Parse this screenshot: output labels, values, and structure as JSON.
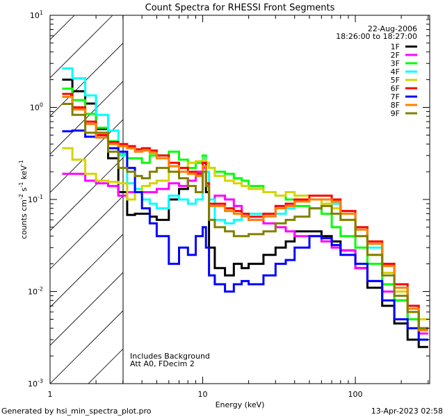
{
  "chart_data": {
    "type": "line",
    "title": "Count Spectra for RHESSI Front Segments",
    "xlabel": "Energy (keV)",
    "ylabel": "counts cm-2 s-1 keV-1",
    "ylabel_parts": {
      "base": "counts cm",
      "e1": "-2",
      "s": " s",
      "e2": "-1",
      "k": " keV",
      "e3": "-1"
    },
    "xscale": "log",
    "yscale": "log",
    "xlim": [
      1,
      307
    ],
    "ylim": [
      0.001,
      10
    ],
    "x_ticks": [
      {
        "value": 1,
        "label": "1"
      },
      {
        "value": 10,
        "label": "10"
      },
      {
        "value": 100,
        "label": "100"
      }
    ],
    "y_ticks": [
      {
        "value": 10,
        "base": "10",
        "exp": "1"
      },
      {
        "value": 1,
        "base": "10",
        "exp": "0"
      },
      {
        "value": 0.1,
        "base": "10",
        "exp": "-1"
      },
      {
        "value": 0.01,
        "base": "10",
        "exp": "-2"
      },
      {
        "value": 0.001,
        "base": "10",
        "exp": "-3"
      }
    ],
    "shaded_region": {
      "from": 1,
      "to": 3,
      "style": "hatched"
    },
    "legend_placement": "top-right",
    "legend_header": [
      "22-Aug-2006",
      "18:26:00 to 18:27:00"
    ],
    "annotations": [
      "Includes Background",
      "Att A0, FDecim 2"
    ],
    "energy_edges": [
      1.2,
      1.4,
      1.7,
      2.0,
      2.4,
      2.8,
      3.2,
      3.6,
      4,
      4.5,
      5,
      6,
      7,
      8,
      9,
      10,
      10.5,
      11,
      12,
      14,
      16,
      18,
      20,
      25,
      30,
      35,
      40,
      50,
      60,
      70,
      80,
      100,
      120,
      150,
      180,
      220,
      260,
      300
    ],
    "series": [
      {
        "name": "1F",
        "color": "#000000",
        "values": [
          2.0,
          1.5,
          1.1,
          0.58,
          0.28,
          0.12,
          0.068,
          0.07,
          0.07,
          0.065,
          0.06,
          0.1,
          0.13,
          0.16,
          0.2,
          0.25,
          0.12,
          0.03,
          0.018,
          0.015,
          0.02,
          0.018,
          0.02,
          0.025,
          0.03,
          0.035,
          0.045,
          0.045,
          0.04,
          0.035,
          0.028,
          0.018,
          0.011,
          0.007,
          0.0045,
          0.003,
          0.0025
        ]
      },
      {
        "name": "2F",
        "color": "#ff00ff",
        "values": [
          0.19,
          0.19,
          0.16,
          0.15,
          0.14,
          0.11,
          0.12,
          0.12,
          0.12,
          0.12,
          0.13,
          0.15,
          0.14,
          0.16,
          0.2,
          0.22,
          0.15,
          0.1,
          0.11,
          0.1,
          0.085,
          0.07,
          0.06,
          0.055,
          0.05,
          0.045,
          0.04,
          0.04,
          0.035,
          0.03,
          0.028,
          0.018,
          0.013,
          0.01,
          0.008,
          0.005,
          0.0035
        ]
      },
      {
        "name": "3F",
        "color": "#00ff00",
        "values": [
          1.6,
          1.2,
          0.85,
          0.6,
          0.43,
          0.31,
          0.28,
          0.28,
          0.25,
          0.3,
          0.3,
          0.33,
          0.27,
          0.22,
          0.25,
          0.3,
          0.25,
          0.22,
          0.2,
          0.19,
          0.17,
          0.16,
          0.14,
          0.12,
          0.11,
          0.1,
          0.085,
          0.08,
          0.07,
          0.05,
          0.04,
          0.03,
          0.02,
          0.012,
          0.008,
          0.005,
          0.003
        ]
      },
      {
        "name": "4F",
        "color": "#00ffff",
        "values": [
          2.65,
          2.07,
          1.35,
          0.83,
          0.56,
          0.3,
          0.15,
          0.13,
          0.1,
          0.09,
          0.08,
          0.11,
          0.1,
          0.09,
          0.1,
          0.28,
          0.2,
          0.1,
          0.06,
          0.055,
          0.06,
          0.065,
          0.07,
          0.065,
          0.07,
          0.08,
          0.1,
          0.11,
          0.11,
          0.09,
          0.07,
          0.05,
          0.03,
          0.02,
          0.012,
          0.007,
          0.004
        ]
      },
      {
        "name": "5F",
        "color": "#d4d400",
        "values": [
          0.36,
          0.27,
          0.19,
          0.16,
          0.155,
          0.15,
          0.1,
          0.12,
          0.14,
          0.15,
          0.16,
          0.2,
          0.22,
          0.25,
          0.26,
          0.27,
          0.25,
          0.22,
          0.18,
          0.16,
          0.15,
          0.14,
          0.13,
          0.12,
          0.11,
          0.12,
          0.11,
          0.1,
          0.09,
          0.08,
          0.06,
          0.04,
          0.025,
          0.016,
          0.01,
          0.007,
          0.005
        ]
      },
      {
        "name": "6F",
        "color": "#ff0000",
        "values": [
          1.4,
          1.0,
          0.7,
          0.5,
          0.42,
          0.4,
          0.38,
          0.35,
          0.36,
          0.34,
          0.3,
          0.25,
          0.22,
          0.2,
          0.19,
          0.25,
          0.15,
          0.09,
          0.09,
          0.08,
          0.075,
          0.07,
          0.065,
          0.07,
          0.085,
          0.09,
          0.1,
          0.11,
          0.11,
          0.1,
          0.075,
          0.05,
          0.035,
          0.02,
          0.012,
          0.007,
          0.004
        ]
      },
      {
        "name": "7F",
        "color": "#0000ff",
        "values": [
          0.55,
          0.56,
          0.48,
          0.47,
          0.36,
          0.33,
          0.22,
          0.12,
          0.08,
          0.055,
          0.04,
          0.02,
          0.03,
          0.025,
          0.04,
          0.05,
          0.03,
          0.015,
          0.012,
          0.01,
          0.012,
          0.013,
          0.012,
          0.015,
          0.02,
          0.022,
          0.03,
          0.04,
          0.038,
          0.032,
          0.025,
          0.02,
          0.013,
          0.008,
          0.005,
          0.004,
          0.003
        ]
      },
      {
        "name": "8F",
        "color": "#ff8000",
        "values": [
          1.3,
          0.95,
          0.66,
          0.47,
          0.4,
          0.38,
          0.36,
          0.33,
          0.34,
          0.32,
          0.28,
          0.23,
          0.2,
          0.19,
          0.18,
          0.23,
          0.14,
          0.085,
          0.085,
          0.075,
          0.07,
          0.066,
          0.06,
          0.066,
          0.08,
          0.085,
          0.095,
          0.1,
          0.1,
          0.095,
          0.07,
          0.047,
          0.033,
          0.019,
          0.011,
          0.0065,
          0.0038
        ]
      },
      {
        "name": "9F",
        "color": "#808000",
        "values": [
          1.09,
          0.83,
          0.53,
          0.53,
          0.33,
          0.22,
          0.2,
          0.18,
          0.17,
          0.2,
          0.22,
          0.2,
          0.17,
          0.14,
          0.12,
          0.2,
          0.14,
          0.06,
          0.05,
          0.045,
          0.04,
          0.04,
          0.042,
          0.045,
          0.055,
          0.06,
          0.065,
          0.08,
          0.085,
          0.07,
          0.06,
          0.04,
          0.025,
          0.015,
          0.009,
          0.006,
          0.004
        ]
      }
    ]
  },
  "footer": {
    "generated_by": "Generated by hsi_min_spectra_plot.pro",
    "date": "13-Apr-2023 02:58"
  }
}
